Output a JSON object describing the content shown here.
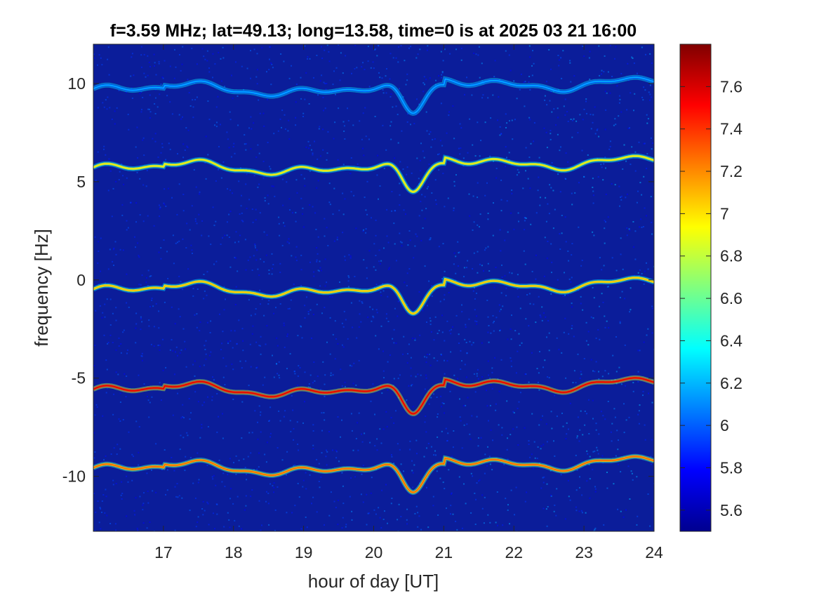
{
  "chart_data": {
    "type": "heatmap",
    "title": "f=3.59 MHz;  lat=49.13; long=13.58, time=0 is at 2025 03 21 16:00",
    "xlabel": "hour of day [UT]",
    "ylabel": "frequency [Hz]",
    "xlim": [
      16,
      24
    ],
    "ylim": [
      -12.8,
      12.0
    ],
    "xticks": [
      "17",
      "18",
      "19",
      "20",
      "21",
      "22",
      "23",
      "24"
    ],
    "yticks": [
      "10",
      "5",
      "0",
      "-5",
      "-10"
    ],
    "colorbar": {
      "ticks": [
        "7.6",
        "7.4",
        "7.2",
        "7",
        "6.8",
        "6.6",
        "6.4",
        "6.2",
        "6",
        "5.8",
        "5.6"
      ],
      "clim": [
        5.5,
        7.8
      ],
      "colormap": "jet"
    },
    "colors": {
      "background": "#0b1d9a",
      "frame": "#262626"
    },
    "traces": [
      {
        "base": 9.6,
        "dip_depth": 1.6,
        "intensity": 6.2
      },
      {
        "base": 5.6,
        "dip_depth": 1.6,
        "intensity": 7.0
      },
      {
        "base": -0.6,
        "dip_depth": 1.6,
        "intensity": 7.1
      },
      {
        "base": -5.7,
        "dip_depth": 1.6,
        "intensity": 7.6
      },
      {
        "base": -9.7,
        "dip_depth": 1.6,
        "intensity": 7.3
      }
    ],
    "dip_center_hour": 20.55
  }
}
